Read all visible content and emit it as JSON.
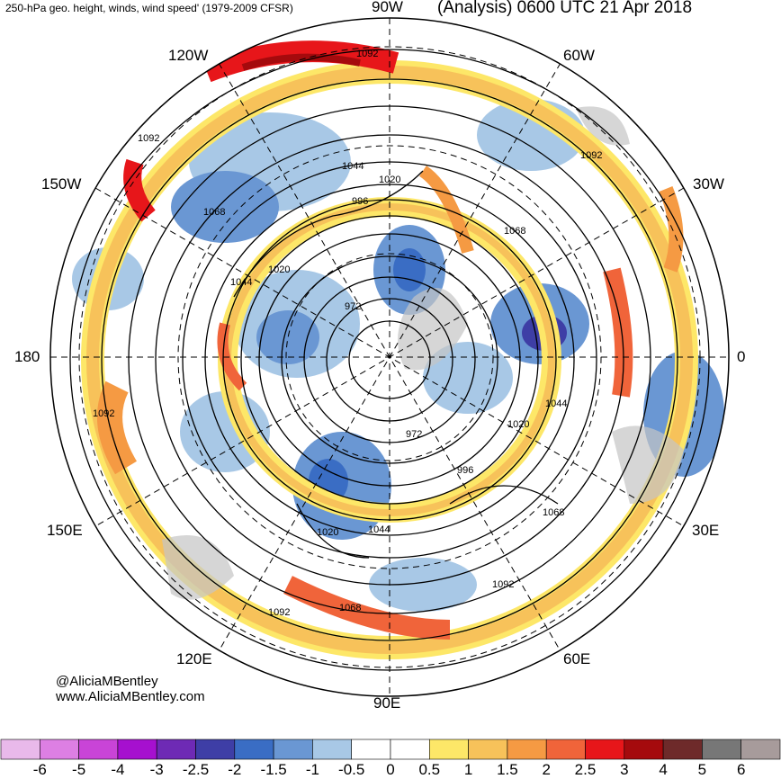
{
  "header": {
    "title_left": "250-hPa geo. height, winds, wind speed' (1979-2009 CFSR)",
    "title_right": "(Analysis) 0600 UTC 21 Apr 2018"
  },
  "longitude_labels": {
    "top": "90W",
    "bottom": "90E",
    "left": "180",
    "right": "0",
    "ul1": "120W",
    "ul2": "150W",
    "ur1": "60W",
    "ur2": "30W",
    "ll1": "150E",
    "ll2": "120E",
    "lr1": "30E",
    "lr2": "60E"
  },
  "contour_labels": [
    "1092",
    "1092",
    "1092",
    "1092",
    "1092",
    "1092",
    "1068",
    "1068",
    "1068",
    "1068",
    "1044",
    "1044",
    "1044",
    "1044",
    "1020",
    "1020",
    "1020",
    "1020",
    "996",
    "996",
    "972",
    "972"
  ],
  "credit": {
    "handle": "@AliciaMBentley",
    "url": "www.AliciaMBentley.com"
  },
  "colorbar": {
    "ticks": [
      "-6",
      "-5",
      "-4",
      "-3",
      "-2.5",
      "-2",
      "-1.5",
      "-1",
      "-0.5",
      "0",
      "0.5",
      "1",
      "1.5",
      "2",
      "2.5",
      "3",
      "4",
      "5",
      "6"
    ],
    "colors": [
      "#e9b9ea",
      "#dd7fe3",
      "#c944d7",
      "#a610cf",
      "#6e2ab5",
      "#3e3ea6",
      "#3a6dc4",
      "#6a97d3",
      "#a8c8e6",
      "#ffffff",
      "#ffffff",
      "#fde768",
      "#f7c25a",
      "#f59a43",
      "#f0643a",
      "#e7161a",
      "#a50a0d",
      "#6e2a2a",
      "#777777",
      "#a79b9b"
    ]
  }
}
